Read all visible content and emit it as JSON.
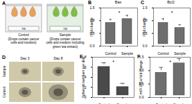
{
  "chart_data": [
    {
      "type": "bar",
      "title": "Bax",
      "y_label": "Fold change",
      "categories": [
        "Control",
        "Sample"
      ],
      "values": [
        1.0,
        1.15
      ],
      "errors": [
        0.05,
        0.06
      ],
      "color": "#6e6e6e",
      "ylim": [
        0,
        1.5
      ],
      "yticks": [
        0,
        0.5,
        1,
        1.5
      ],
      "annotations": [
        "*"
      ]
    },
    {
      "type": "bar",
      "title": "Bcl2",
      "y_label": "Fold change",
      "categories": [
        "Control",
        "Sample"
      ],
      "values": [
        1.0,
        0.8
      ],
      "errors": [
        0.08,
        0.04
      ],
      "color": "#6e6e6e",
      "ylim": [
        0,
        1.5
      ],
      "yticks": [
        0,
        0.5,
        1,
        1.5
      ],
      "annotations": [
        "*"
      ]
    },
    {
      "type": "bar",
      "y_label": "Spheroid numbers per disk",
      "categories": [
        "Control",
        "Sample"
      ],
      "values": [
        6.5,
        2.5
      ],
      "errors": [
        0.4,
        0.3
      ],
      "color": "#4a4a4a",
      "ylim": [
        0,
        8
      ],
      "yticks": [
        0,
        2,
        4,
        6,
        8
      ],
      "annotations": [
        "*"
      ]
    },
    {
      "type": "bar",
      "y_label": "miR-181a fold change",
      "categories": [
        "Control",
        "Sample"
      ],
      "values": [
        1.0,
        1.35
      ],
      "errors": [
        0.12,
        0.1
      ],
      "color": "#6e6e6e",
      "ylim": [
        0,
        1.5
      ],
      "yticks": [
        0,
        0.5,
        1,
        1.5
      ],
      "annotations": [
        "*"
      ]
    }
  ],
  "figure": {
    "chart_panel_labels": [
      "B",
      "C",
      "E",
      "F"
    ],
    "panel_a": {
      "label": "A",
      "wells": [
        {
          "base": "TW",
          "caption": [
            "Control",
            "(Drops contain cancer",
            "cells and medium)"
          ]
        },
        {
          "base": "TW",
          "caption": [
            "Sample",
            "(Drops contain cancer",
            "cells and medium including",
            "green tea extract)"
          ]
        }
      ]
    },
    "panel_d": {
      "label": "D",
      "columns": [
        "Day 3",
        "Day 8"
      ],
      "rows": [
        "Sample",
        "Control"
      ]
    }
  }
}
